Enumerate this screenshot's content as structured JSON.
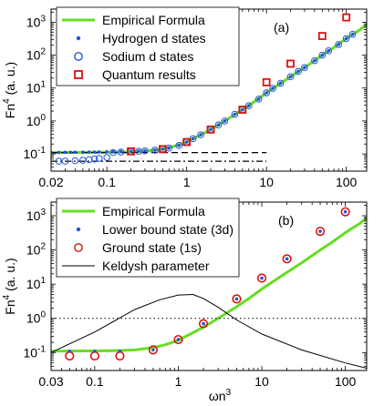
{
  "chart_data": [
    {
      "type": "scatter",
      "panel_label": "(a)",
      "xscale": "log",
      "yscale": "log",
      "xlim": [
        0.02,
        180
      ],
      "ylim": [
        0.03,
        2500
      ],
      "xlabel": "",
      "ylabel": "Fn",
      "ylabel_sup": "4",
      "ylabel_suffix": " (a. u.)",
      "legend_position": "top-left",
      "x_tick_labels": [
        "0.02",
        "0.1",
        "1",
        "10",
        "100"
      ],
      "x_ticks": [
        0.02,
        0.1,
        1,
        10,
        100
      ],
      "y_ticks": [
        0.1,
        1,
        10,
        100,
        1000
      ],
      "y_tick_labels": [
        {
          "base": "10",
          "exp": "-1"
        },
        {
          "base": "10",
          "exp": "0"
        },
        {
          "base": "10",
          "exp": "1"
        },
        {
          "base": "10",
          "exp": "2"
        },
        {
          "base": "10",
          "exp": "3"
        }
      ],
      "series": [
        {
          "name": "Empirical Formula",
          "kind": "curve",
          "color": "#66dd22",
          "x": [
            0.02,
            0.05,
            0.1,
            0.2,
            0.3,
            0.5,
            0.7,
            1,
            1.5,
            2,
            3,
            5,
            7,
            10,
            15,
            20,
            30,
            50,
            70,
            100,
            150,
            180
          ],
          "y": [
            0.11,
            0.111,
            0.112,
            0.115,
            0.12,
            0.14,
            0.17,
            0.23,
            0.38,
            0.55,
            1.0,
            2.2,
            3.8,
            7.2,
            14,
            22,
            42,
            100,
            170,
            320,
            600,
            860
          ]
        },
        {
          "name": "Hydrogen d states",
          "kind": "dots",
          "color": "#2255dd",
          "x": [
            0.02,
            0.025,
            0.03,
            0.035,
            0.04,
            0.05,
            0.06,
            0.07,
            0.08,
            0.1,
            0.12,
            0.15,
            0.2,
            0.25,
            0.3,
            0.4,
            0.5,
            0.6,
            0.8,
            1,
            1.2,
            1.5,
            2,
            2.5,
            3,
            4,
            5,
            6,
            8,
            10,
            12,
            15,
            20,
            25,
            30,
            40,
            50,
            60,
            80,
            100,
            120
          ],
          "y": [
            0.11,
            0.111,
            0.112,
            0.112,
            0.113,
            0.113,
            0.114,
            0.114,
            0.115,
            0.116,
            0.117,
            0.118,
            0.12,
            0.122,
            0.125,
            0.13,
            0.14,
            0.15,
            0.18,
            0.23,
            0.29,
            0.38,
            0.55,
            0.76,
            1.0,
            1.6,
            2.2,
            2.9,
            4.6,
            7.2,
            9.8,
            14,
            22,
            32,
            42,
            68,
            100,
            135,
            210,
            320,
            430
          ]
        },
        {
          "name": "Sodium d states",
          "kind": "open-circles",
          "color": "#2255dd",
          "x": [
            0.025,
            0.03,
            0.04,
            0.05,
            0.06,
            0.07,
            0.08,
            0.1,
            0.12,
            0.15,
            0.2,
            0.25,
            0.3,
            0.4,
            0.5,
            0.6,
            0.8,
            1,
            1.2,
            1.5,
            2,
            2.5,
            3,
            4,
            5,
            6,
            8,
            10,
            12,
            15,
            20,
            25,
            30,
            40,
            50,
            60,
            80,
            100,
            120
          ],
          "y": [
            0.06,
            0.06,
            0.062,
            0.064,
            0.067,
            0.07,
            0.073,
            0.078,
            0.11,
            0.114,
            0.118,
            0.12,
            0.124,
            0.13,
            0.14,
            0.15,
            0.18,
            0.23,
            0.29,
            0.38,
            0.55,
            0.76,
            1.0,
            1.6,
            2.2,
            2.9,
            4.6,
            7.2,
            9.8,
            14,
            22,
            32,
            42,
            68,
            100,
            135,
            210,
            320,
            430
          ]
        },
        {
          "name": "Quantum results",
          "kind": "open-squares",
          "color": "#dd1111",
          "x": [
            0.2,
            0.5,
            1,
            2,
            5,
            10,
            20,
            50,
            100
          ],
          "y": [
            0.12,
            0.14,
            0.23,
            0.55,
            2.2,
            15,
            55,
            380,
            1400
          ]
        },
        {
          "name": "",
          "kind": "dashed-line",
          "color": "#000000",
          "x": [
            0.02,
            10
          ],
          "y": [
            0.11,
            0.11
          ]
        },
        {
          "name": "",
          "kind": "dashdot-line",
          "color": "#000000",
          "x": [
            0.02,
            10
          ],
          "y": [
            0.06,
            0.06
          ]
        }
      ]
    },
    {
      "type": "scatter",
      "panel_label": "(b)",
      "xscale": "log",
      "yscale": "log",
      "xlim": [
        0.03,
        180
      ],
      "ylim": [
        0.03,
        2500
      ],
      "xlabel": "ωn",
      "xlabel_sup": "3",
      "ylabel": "Fn",
      "ylabel_sup": "4",
      "ylabel_suffix": " (a. u.)",
      "legend_position": "top-left",
      "x_tick_labels": [
        "0.03",
        "0.1",
        "1",
        "10",
        "100"
      ],
      "x_ticks": [
        0.03,
        0.1,
        1,
        10,
        100
      ],
      "y_ticks": [
        0.1,
        1,
        10,
        100,
        1000
      ],
      "y_tick_labels": [
        {
          "base": "10",
          "exp": "-1"
        },
        {
          "base": "10",
          "exp": "0"
        },
        {
          "base": "10",
          "exp": "1"
        },
        {
          "base": "10",
          "exp": "2"
        },
        {
          "base": "10",
          "exp": "3"
        }
      ],
      "series": [
        {
          "name": "Empirical Formula",
          "kind": "curve",
          "color": "#66dd22",
          "x": [
            0.03,
            0.05,
            0.1,
            0.2,
            0.3,
            0.5,
            0.7,
            1,
            1.5,
            2,
            3,
            5,
            7,
            10,
            15,
            20,
            30,
            50,
            70,
            100,
            150,
            180
          ],
          "y": [
            0.11,
            0.111,
            0.112,
            0.115,
            0.12,
            0.14,
            0.17,
            0.23,
            0.38,
            0.55,
            1.0,
            2.2,
            3.8,
            7.2,
            14,
            22,
            42,
            100,
            170,
            320,
            600,
            860
          ]
        },
        {
          "name": "Lower bound state (3d)",
          "kind": "dots",
          "color": "#2255dd",
          "x": [
            0.05,
            0.1,
            0.2,
            0.5,
            1,
            2,
            5,
            10,
            20,
            50,
            100
          ],
          "y": [
            0.11,
            0.11,
            0.11,
            0.12,
            0.24,
            0.7,
            3.7,
            15,
            55,
            350,
            1300
          ]
        },
        {
          "name": "Ground state (1s)",
          "kind": "open-circles",
          "color": "#dd1111",
          "x": [
            0.05,
            0.1,
            0.2,
            0.5,
            1,
            2,
            5,
            10,
            20,
            50,
            100
          ],
          "y": [
            0.08,
            0.08,
            0.08,
            0.12,
            0.24,
            0.7,
            3.7,
            15,
            55,
            350,
            1300
          ]
        },
        {
          "name": "Keldysh parameter",
          "kind": "line",
          "color": "#000000",
          "x": [
            0.03,
            0.1,
            0.3,
            0.6,
            1,
            1.5,
            2,
            3,
            5,
            10,
            30,
            100,
            180
          ],
          "y": [
            0.1,
            0.4,
            1.8,
            3.5,
            4.8,
            5.0,
            3.8,
            2.1,
            0.9,
            0.35,
            0.12,
            0.05,
            0.035
          ]
        },
        {
          "name": "",
          "kind": "dotted-line",
          "color": "#000000",
          "x": [
            0.03,
            180
          ],
          "y": [
            1,
            1
          ]
        }
      ]
    }
  ]
}
